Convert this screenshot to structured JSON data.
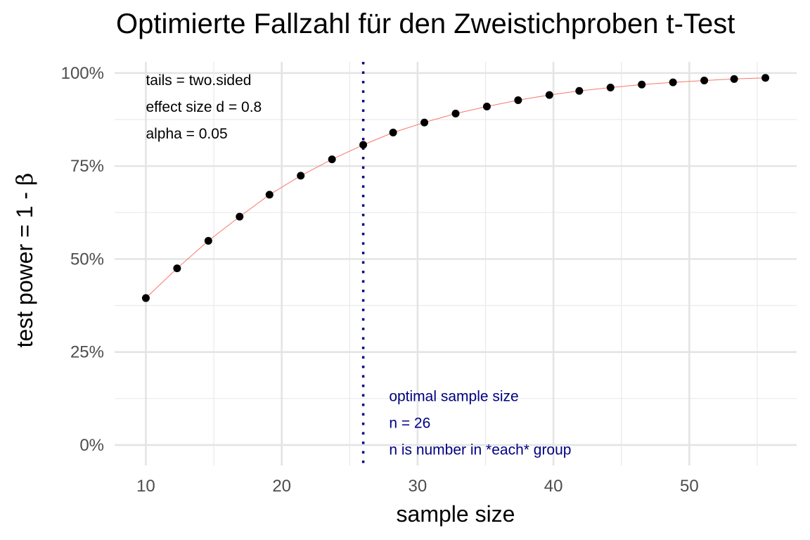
{
  "title": "Optimierte Fallzahl für den Zweistichproben t-Test",
  "chart_data": {
    "type": "line",
    "title": "Optimierte Fallzahl für den Zweistichproben t-Test",
    "xlabel": "sample size",
    "ylabel_prefix": "test power = 1 - ",
    "ylabel_symbol": "β",
    "xlim": [
      7.7,
      57.9
    ],
    "ylim": [
      -0.055,
      1.03
    ],
    "x_ticks": [
      10,
      20,
      30,
      40,
      50
    ],
    "x_tick_labels": [
      "10",
      "20",
      "30",
      "40",
      "50"
    ],
    "y_ticks": [
      0,
      0.25,
      0.5,
      0.75,
      1.0
    ],
    "y_tick_labels": [
      "0%",
      "25%",
      "50%",
      "75%",
      "100%"
    ],
    "grid": true,
    "series": [
      {
        "color": "#F8766D",
        "point_color": "#000000",
        "points": [
          {
            "x": 10.0,
            "y": 0.395
          },
          {
            "x": 12.3,
            "y": 0.475
          },
          {
            "x": 14.6,
            "y": 0.549
          },
          {
            "x": 16.9,
            "y": 0.614
          },
          {
            "x": 19.1,
            "y": 0.673
          },
          {
            "x": 21.4,
            "y": 0.724
          },
          {
            "x": 23.7,
            "y": 0.768
          },
          {
            "x": 26.0,
            "y": 0.807
          },
          {
            "x": 28.2,
            "y": 0.84
          },
          {
            "x": 30.5,
            "y": 0.867
          },
          {
            "x": 32.8,
            "y": 0.891
          },
          {
            "x": 35.1,
            "y": 0.91
          },
          {
            "x": 37.4,
            "y": 0.927
          },
          {
            "x": 39.7,
            "y": 0.941
          },
          {
            "x": 41.9,
            "y": 0.952
          },
          {
            "x": 44.2,
            "y": 0.961
          },
          {
            "x": 46.5,
            "y": 0.969
          },
          {
            "x": 48.8,
            "y": 0.975
          },
          {
            "x": 51.1,
            "y": 0.98
          },
          {
            "x": 53.3,
            "y": 0.984
          },
          {
            "x": 55.6,
            "y": 0.987
          }
        ]
      }
    ],
    "vline": {
      "x": 26,
      "color": "#000080",
      "style": "dotted"
    },
    "annotations_black": {
      "anchor": {
        "x": 10.0,
        "y": 1.0
      },
      "lines": [
        "tails = two.sided",
        "effect size d = 0.8",
        "alpha = 0.05"
      ],
      "color": "#000000"
    },
    "annotations_blue": {
      "anchor": {
        "x": 27.9,
        "y": 0.15
      },
      "lines": [
        "optimal sample size",
        "n = 26",
        "n is number in *each* group"
      ],
      "color": "#000080"
    }
  }
}
